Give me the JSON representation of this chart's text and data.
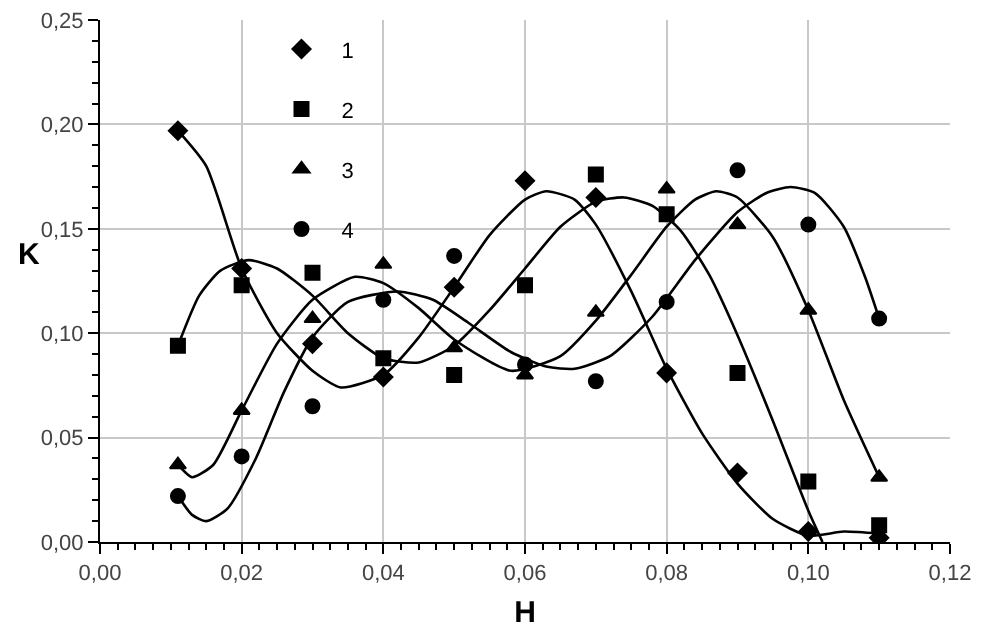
{
  "chart_data": {
    "type": "scatter",
    "xlabel": "H",
    "ylabel": "K",
    "xlim": [
      0,
      0.12
    ],
    "xticks": [
      {
        "value": 0,
        "label": "0,00"
      },
      {
        "value": 0.02,
        "label": "0,02"
      },
      {
        "value": 0.04,
        "label": "0,04"
      },
      {
        "value": 0.06,
        "label": "0,06"
      },
      {
        "value": 0.08,
        "label": "0,08"
      },
      {
        "value": 0.1,
        "label": "0,10"
      },
      {
        "value": 0.12,
        "label": "0,12"
      }
    ],
    "ylim": [
      0,
      0.25
    ],
    "yticks": [
      {
        "value": 0,
        "label": "0,00"
      },
      {
        "value": 0.05,
        "label": "0,05"
      },
      {
        "value": 0.1,
        "label": "0,10"
      },
      {
        "value": 0.15,
        "label": "0,15"
      },
      {
        "value": 0.2,
        "label": "0,20"
      },
      {
        "value": 0.25,
        "label": "0,25"
      }
    ],
    "grid": true,
    "legend": "top left",
    "x": [
      0.011,
      0.02,
      0.03,
      0.04,
      0.05,
      0.06,
      0.07,
      0.08,
      0.09,
      0.1,
      0.11
    ],
    "series": [
      {
        "name": "1",
        "color": "#000000",
        "marker": "diamond",
        "values": [
          0.197,
          0.131,
          0.095,
          0.079,
          0.122,
          0.173,
          0.165,
          0.081,
          0.033,
          0.005,
          0.002
        ]
      },
      {
        "name": "2",
        "color": "#000000",
        "marker": "square",
        "values": [
          0.094,
          0.123,
          0.129,
          0.088,
          0.08,
          0.123,
          0.176,
          0.157,
          0.081,
          0.029,
          0.008
        ]
      },
      {
        "name": "3",
        "color": "#000000",
        "marker": "triangle",
        "values": [
          0.037,
          0.063,
          0.107,
          0.133,
          0.093,
          0.08,
          0.11,
          0.169,
          0.152,
          0.111,
          0.031
        ]
      },
      {
        "name": "4",
        "color": "#000000",
        "marker": "circle",
        "values": [
          0.022,
          0.041,
          0.065,
          0.116,
          0.137,
          0.085,
          0.077,
          0.115,
          0.178,
          0.152,
          0.107
        ]
      },
      {
        "type": "line",
        "color": "#000000",
        "marker": "none",
        "x": [
          0.011,
          0.015,
          0.02,
          0.025,
          0.03,
          0.034,
          0.04,
          0.045,
          0.05,
          0.055,
          0.06,
          0.063,
          0.067,
          0.07,
          0.075,
          0.08,
          0.085,
          0.09,
          0.095,
          0.1,
          0.105,
          0.11
        ],
        "values": [
          0.197,
          0.18,
          0.131,
          0.1,
          0.082,
          0.074,
          0.08,
          0.098,
          0.122,
          0.147,
          0.164,
          0.168,
          0.164,
          0.152,
          0.12,
          0.083,
          0.052,
          0.028,
          0.011,
          0.003,
          0.005,
          0.004
        ]
      },
      {
        "type": "line",
        "color": "#000000",
        "marker": "none",
        "x": [
          0.011,
          0.014,
          0.017,
          0.021,
          0.025,
          0.03,
          0.035,
          0.04,
          0.045,
          0.05,
          0.055,
          0.06,
          0.065,
          0.07,
          0.074,
          0.078,
          0.082,
          0.086,
          0.09,
          0.095,
          0.1,
          0.102
        ],
        "values": [
          0.094,
          0.118,
          0.13,
          0.135,
          0.131,
          0.118,
          0.1,
          0.088,
          0.086,
          0.094,
          0.111,
          0.131,
          0.151,
          0.163,
          0.165,
          0.161,
          0.149,
          0.128,
          0.099,
          0.058,
          0.015,
          0
        ]
      },
      {
        "type": "line",
        "color": "#000000",
        "marker": "none",
        "x": [
          0.011,
          0.013,
          0.016,
          0.02,
          0.025,
          0.03,
          0.036,
          0.04,
          0.045,
          0.05,
          0.058,
          0.065,
          0.07,
          0.075,
          0.08,
          0.084,
          0.087,
          0.09,
          0.095,
          0.1,
          0.105,
          0.11
        ],
        "values": [
          0.037,
          0.031,
          0.037,
          0.063,
          0.095,
          0.116,
          0.127,
          0.124,
          0.112,
          0.097,
          0.082,
          0.089,
          0.106,
          0.128,
          0.151,
          0.164,
          0.168,
          0.165,
          0.146,
          0.111,
          0.068,
          0.031
        ]
      },
      {
        "type": "line",
        "color": "#000000",
        "marker": "none",
        "x": [
          0.011,
          0.013,
          0.015,
          0.018,
          0.022,
          0.026,
          0.03,
          0.035,
          0.042,
          0.047,
          0.052,
          0.058,
          0.063,
          0.067,
          0.072,
          0.078,
          0.084,
          0.09,
          0.094,
          0.0975,
          0.101,
          0.105,
          0.108,
          0.11
        ],
        "values": [
          0.022,
          0.013,
          0.01,
          0.016,
          0.04,
          0.072,
          0.098,
          0.115,
          0.12,
          0.116,
          0.105,
          0.091,
          0.084,
          0.083,
          0.089,
          0.108,
          0.135,
          0.158,
          0.167,
          0.17,
          0.167,
          0.151,
          0.127,
          0.107
        ]
      }
    ]
  }
}
